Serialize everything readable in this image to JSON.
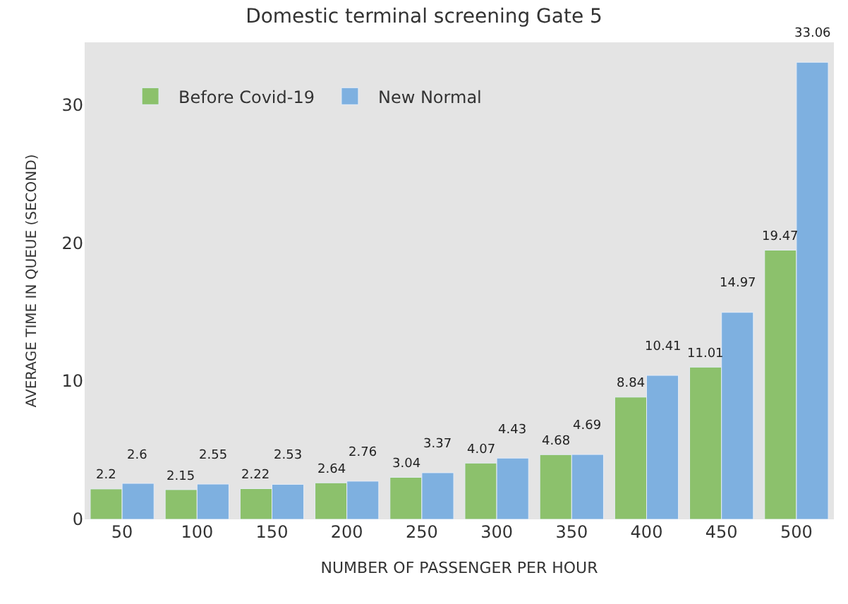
{
  "chart_data": {
    "type": "bar",
    "title": "Domestic terminal screening Gate 5",
    "xlabel": "NUMBER OF PASSENGER PER HOUR",
    "ylabel": "AVERAGE TIME IN QUEUE (SECOND)",
    "categories": [
      "50",
      "100",
      "150",
      "200",
      "250",
      "300",
      "350",
      "400",
      "450",
      "500"
    ],
    "series": [
      {
        "name": "Before Covid-19",
        "color": "#8cc16c",
        "values": [
          2.2,
          2.15,
          2.22,
          2.64,
          3.04,
          4.07,
          4.68,
          8.84,
          11.01,
          19.47
        ]
      },
      {
        "name": "New Normal",
        "color": "#7eb0e0",
        "values": [
          2.6,
          2.55,
          2.53,
          2.76,
          3.37,
          4.43,
          4.69,
          10.41,
          14.97,
          33.06
        ]
      }
    ],
    "ylim": [
      0,
      34.5
    ],
    "yticks": [
      0,
      10,
      20,
      30
    ],
    "grid": false,
    "legend": "top left",
    "data_labels": true
  }
}
